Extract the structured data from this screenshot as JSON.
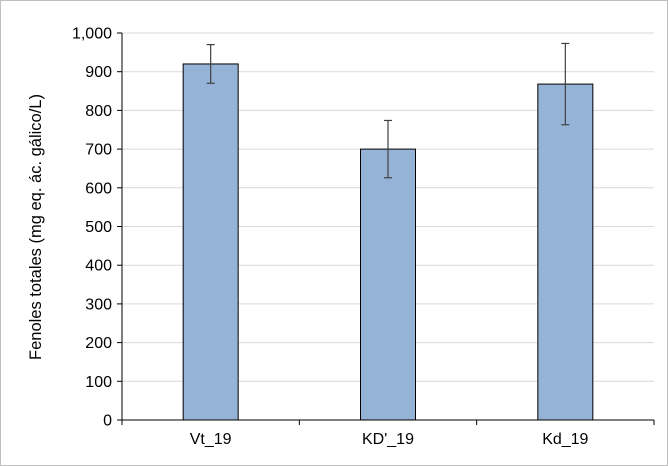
{
  "chart_data": {
    "type": "bar",
    "title": "",
    "xlabel": "",
    "ylabel": "Fenoles totales (mg eq. ác. gálico/L)",
    "categories": [
      "Vt_19",
      "KD'_19",
      "Kd_19"
    ],
    "values": [
      920,
      700,
      868
    ],
    "error": [
      50,
      74,
      105
    ],
    "ylim": [
      0,
      1000
    ],
    "yticks": [
      0,
      100,
      200,
      300,
      400,
      500,
      600,
      700,
      800,
      900,
      1000
    ],
    "ytick_labels": [
      "0",
      "100",
      "200",
      "300",
      "400",
      "500",
      "600",
      "700",
      "800",
      "900",
      "1,000"
    ],
    "grid": true,
    "legend": "none",
    "colors": {
      "bar": "#95b3d7",
      "bar_edge": "#000000",
      "grid": "#d9d9d9",
      "error_bar": "#404040"
    }
  }
}
